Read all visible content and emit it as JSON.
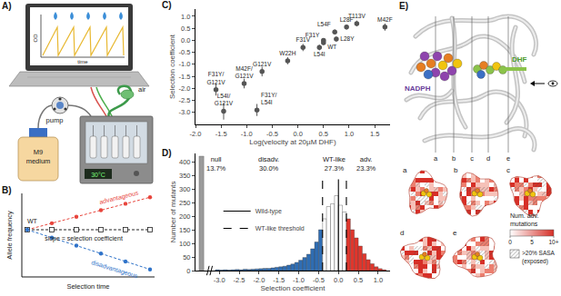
{
  "panel_A": {
    "letter": "A)",
    "screen_y_label": "OD",
    "screen_x_label": "time",
    "pump": "pump",
    "air": "air",
    "bottle_label": [
      "M9",
      "medium"
    ],
    "incubator_display": "30°C"
  },
  "panel_B": {
    "letter": "B)",
    "y_label": "Allele frequency",
    "x_label": "Selection time",
    "slope_label": "slope = selection coefficient",
    "series": [
      {
        "name": "advantageous",
        "color": "#e8453c"
      },
      {
        "name": "WT",
        "color": "#222222"
      },
      {
        "name": "disadvantageous",
        "color": "#2f73c9"
      }
    ]
  },
  "chart_data": [
    {
      "type": "scatter",
      "letter": "C)",
      "x_label": "Log(velocity at 20µM DHF)",
      "y_label": "Selection coefficient",
      "labels": [
        "F31Y/G121V",
        "L54I/G121V",
        "M42F/G121V",
        "G121V",
        "F31Y/L54I",
        "W22H",
        "F31V",
        "L54I",
        "F31Y",
        "WT",
        "L28Y",
        "L54F",
        "L28F",
        "T113V",
        "M42F"
      ],
      "x": [
        -1.6,
        -1.45,
        -1.05,
        -0.7,
        -0.8,
        -0.2,
        0.1,
        0.42,
        0.5,
        0.5,
        0.75,
        0.72,
        0.95,
        1.15,
        1.7
      ],
      "values": [
        -2.05,
        -2.95,
        -1.8,
        -1.3,
        -2.9,
        -0.85,
        -0.3,
        -0.3,
        -0.1,
        0.0,
        0.05,
        0.35,
        0.55,
        0.7,
        0.55
      ],
      "errors": [
        0.25,
        0.35,
        0.2,
        0.2,
        0.25,
        0.15,
        0.15,
        0.12,
        0.1,
        0.08,
        0.1,
        0.1,
        0.1,
        0.12,
        0.15
      ],
      "color": "#555555",
      "marker": "circle",
      "xlim": [
        -2.0,
        1.8
      ],
      "xticks": [
        {
          "value": -2,
          "label": "-2.0"
        },
        -1.5,
        {
          "value": -1,
          "label": "-1.0"
        },
        -0.5,
        {
          "value": 0,
          "label": "0.0"
        },
        0.5,
        {
          "value": 1,
          "label": "1.0"
        },
        1.5
      ],
      "ylim": [
        -3.5,
        1.3
      ],
      "yticks": [
        {
          "value": -3,
          "label": "-3.0"
        },
        -2.5,
        {
          "value": -2,
          "label": "-2.0"
        },
        -1.5,
        {
          "value": -1,
          "label": "-1.0"
        },
        -0.5,
        {
          "value": 0,
          "label": "0.0"
        },
        0.5,
        {
          "value": 1,
          "label": "1.0"
        }
      ],
      "grid": false
    },
    {
      "type": "histogram",
      "letter": "D)",
      "x_label": "Selection coefficient",
      "y_label": "Number of mutants",
      "bins": [
        -3.1,
        -3.0,
        -2.9,
        -2.8,
        -2.7,
        -2.6,
        -2.5,
        -2.4,
        -2.3,
        -2.2,
        -2.1,
        -2.0,
        -1.9,
        -1.8,
        -1.7,
        -1.6,
        -1.5,
        -1.4,
        -1.3,
        -1.2,
        -1.1,
        -1.0,
        -0.9,
        -0.8,
        -0.7,
        -0.6,
        -0.5,
        -0.4,
        -0.3,
        -0.2,
        -0.1,
        0.0,
        0.1,
        0.2,
        0.3,
        0.4,
        0.5,
        0.6,
        0.7,
        0.8,
        0.9,
        1.0,
        1.1,
        1.2
      ],
      "values": [
        3,
        2,
        3,
        2,
        3,
        4,
        3,
        5,
        4,
        5,
        6,
        7,
        8,
        8,
        10,
        12,
        14,
        16,
        20,
        24,
        30,
        38,
        48,
        60,
        80,
        105,
        150,
        190,
        235,
        245,
        275,
        240,
        215,
        190,
        150,
        120,
        90,
        62,
        40,
        25,
        14,
        7,
        3
      ],
      "colors": [
        "#2f6db3",
        "#2f6db3",
        "#2f6db3",
        "#2f6db3",
        "#2f6db3",
        "#2f6db3",
        "#2f6db3",
        "#2f6db3",
        "#2f6db3",
        "#2f6db3",
        "#2f6db3",
        "#2f6db3",
        "#2f6db3",
        "#2f6db3",
        "#2f6db3",
        "#2f6db3",
        "#2f6db3",
        "#2f6db3",
        "#2f6db3",
        "#2f6db3",
        "#2f6db3",
        "#2f6db3",
        "#2f6db3",
        "#2f6db3",
        "#2f6db3",
        "#2f6db3",
        "#2f6db3",
        "#ffffff",
        "#ffffff",
        "#ffffff",
        "#ffffff",
        "#ffffff",
        "#ffffff",
        "#e0362c",
        "#e0362c",
        "#e0362c",
        "#e0362c",
        "#e0362c",
        "#e0362c",
        "#e0362c",
        "#e0362c",
        "#e0362c",
        "#e0362c"
      ],
      "null_count": 420,
      "null_color": "#9b9b9b",
      "groups": [
        {
          "name": "null",
          "value": 13.7,
          "value_label": "13.7%",
          "color": "#9b9b9b"
        },
        {
          "name": "disadv.",
          "value": 30.0,
          "value_label": "30.0%",
          "color": "#2f6db3"
        },
        {
          "name": "WT-like",
          "value": 27.3,
          "value_label": "27.3%",
          "color": "#ffffff"
        },
        {
          "name": "adv.",
          "value": 23.3,
          "value_label": "23.3%",
          "color": "#e0362c"
        }
      ],
      "series": [
        {
          "name": "Wild-type",
          "x": [
            0.0
          ],
          "color": "#000000",
          "line_style": "solid"
        },
        {
          "name": "WT-like threshold",
          "x": [
            -0.4,
            0.2
          ],
          "color": "#000000",
          "line_style": "dashed"
        }
      ],
      "legend": "left",
      "xlim": [
        -3.6,
        1.3
      ],
      "xticks": [
        {
          "value": -3,
          "label": "-3.0"
        },
        -2.5,
        {
          "value": -2,
          "label": "-2.0"
        },
        -1.5,
        {
          "value": -1,
          "label": "-1.0"
        },
        -0.5,
        {
          "value": 0,
          "label": "0.0"
        },
        0.5,
        {
          "value": 1,
          "label": "1.0"
        }
      ],
      "ylim": [
        0,
        430
      ],
      "yticks": [
        0,
        50,
        100,
        150,
        200,
        250,
        300,
        350,
        400
      ],
      "grid": false
    }
  ],
  "panel_E": {
    "letter": "E)",
    "ligands": [
      "NADPH",
      "DHF"
    ],
    "slices": [
      "a",
      "b",
      "c",
      "d",
      "e"
    ],
    "colorbar": {
      "title": "Num. adv. mutations",
      "range": [
        0,
        10
      ],
      "ticks": [
        0,
        5,
        {
          "value": 10,
          "label": "10+"
        }
      ],
      "colors": [
        "#ffffff",
        "#d62f27"
      ]
    },
    "hatch_legend": ">20% SASA (exposed)"
  }
}
